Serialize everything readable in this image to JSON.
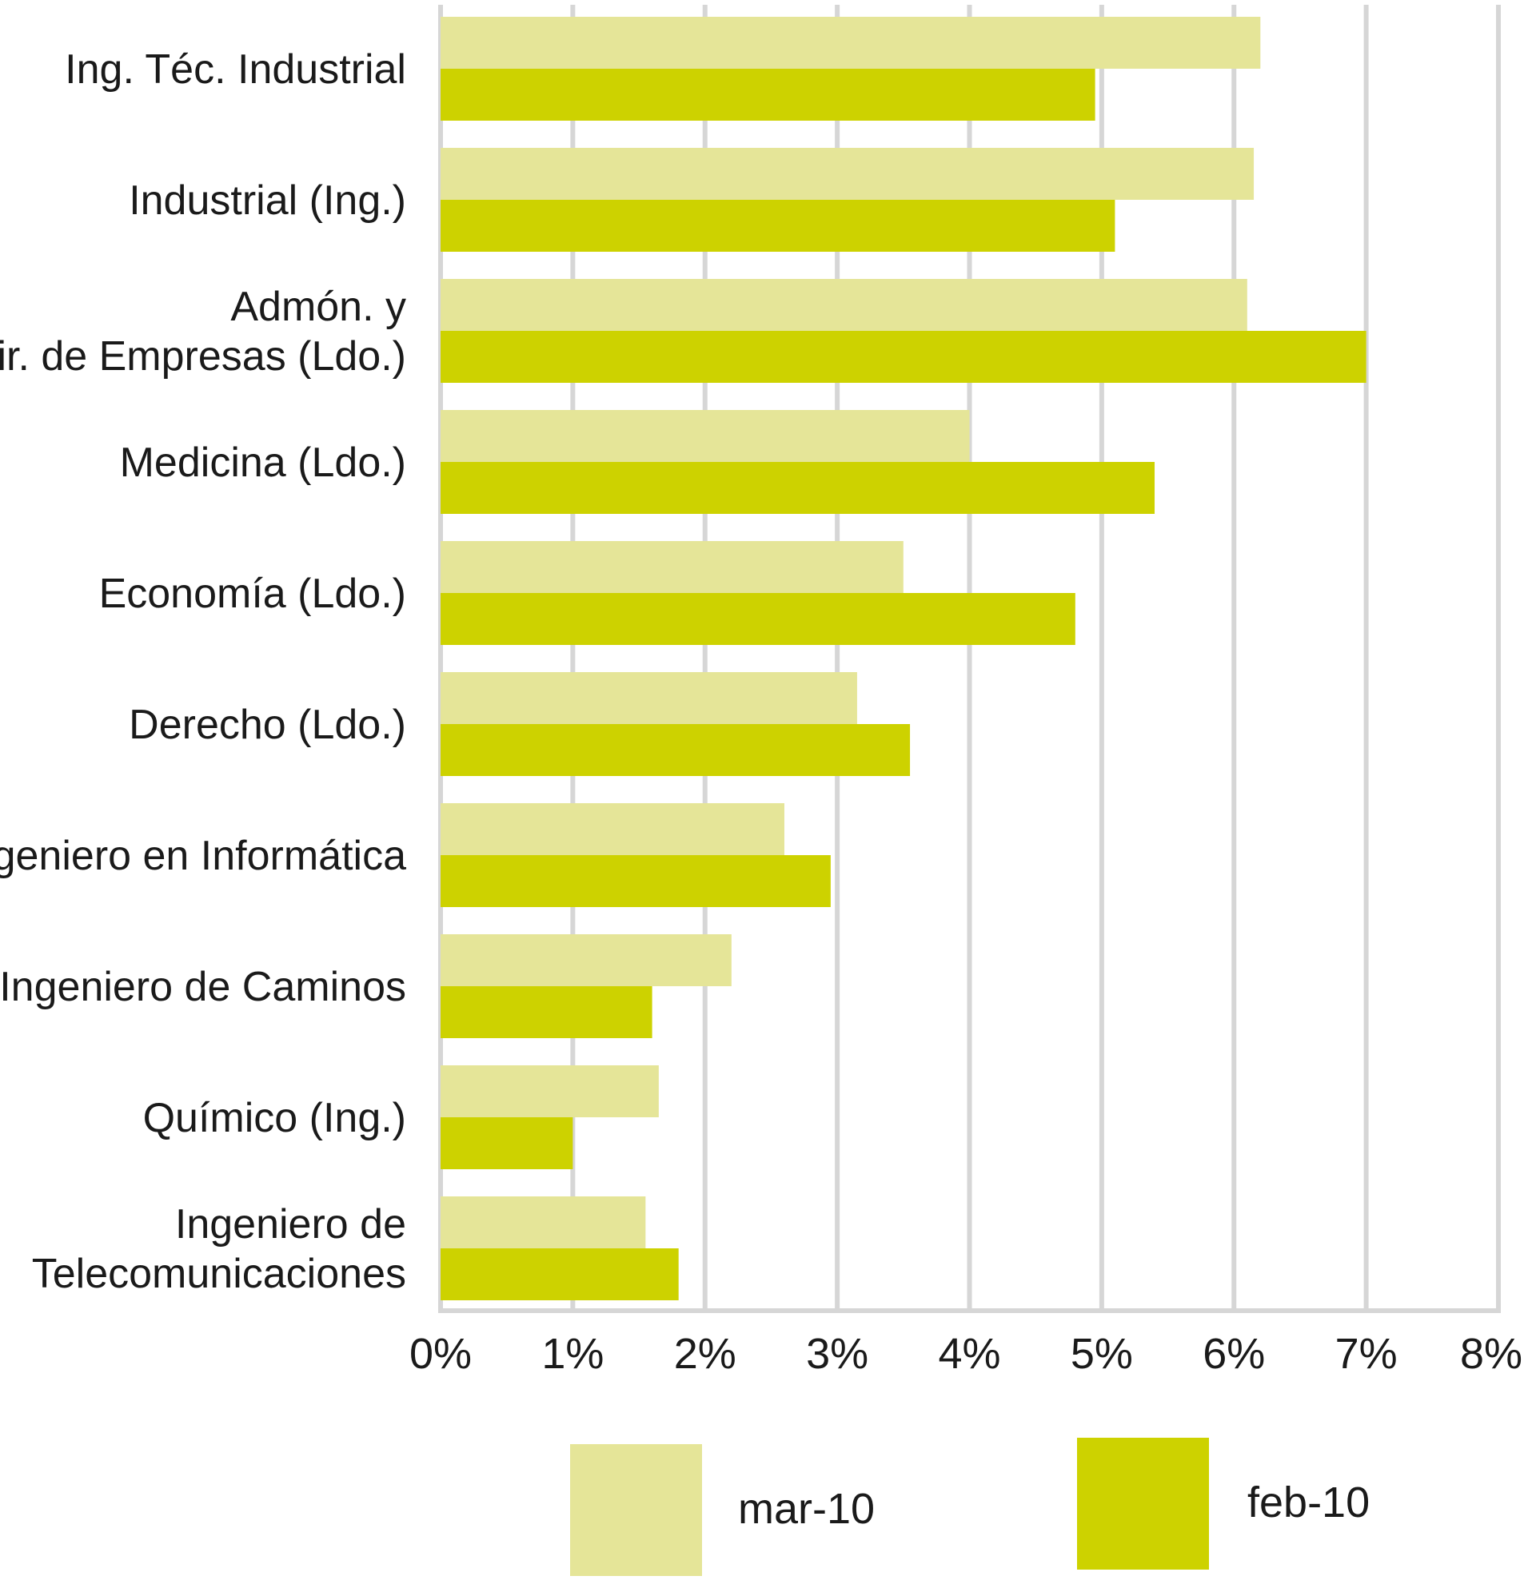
{
  "chart_data": {
    "type": "bar",
    "orientation": "horizontal",
    "title": "",
    "xlabel": "",
    "ylabel": "",
    "xlim": [
      0,
      8
    ],
    "x_ticks": [
      "0%",
      "1%",
      "2%",
      "3%",
      "4%",
      "5%",
      "6%",
      "7%",
      "8%"
    ],
    "grid": true,
    "legend_position": "bottom",
    "categories": [
      "Ing. Téc. Industrial",
      "Industrial (Ing.)",
      "Admón. y\nDir. de Empresas (Ldo.)",
      "Medicina (Ldo.)",
      "Economía (Ldo.)",
      "Derecho (Ldo.)",
      "Ingeniero en Informática",
      "Ingeniero de Caminos",
      "Químico (Ing.)",
      "Ingeniero de\nTelecomunicaciones"
    ],
    "series": [
      {
        "name": "mar-10",
        "color": "#e5e598",
        "values": [
          6.2,
          6.15,
          6.1,
          4.0,
          3.5,
          3.15,
          2.6,
          2.2,
          1.65,
          1.55
        ]
      },
      {
        "name": "feb-10",
        "color": "#cdd200",
        "values": [
          4.95,
          5.1,
          7.0,
          5.4,
          4.8,
          3.55,
          2.95,
          1.6,
          1.0,
          1.8
        ]
      }
    ]
  }
}
